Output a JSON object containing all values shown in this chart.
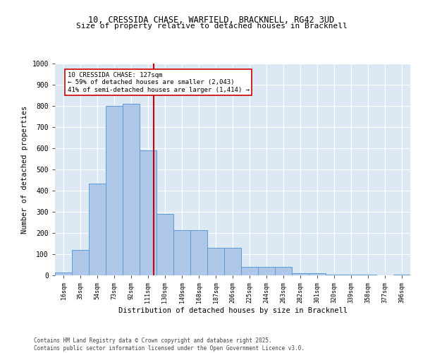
{
  "title_line1": "10, CRESSIDA CHASE, WARFIELD, BRACKNELL, RG42 3UD",
  "title_line2": "Size of property relative to detached houses in Bracknell",
  "xlabel": "Distribution of detached houses by size in Bracknell",
  "ylabel": "Number of detached properties",
  "annotation_line1": "10 CRESSIDA CHASE: 127sqm",
  "annotation_line2": "← 59% of detached houses are smaller (2,043)",
  "annotation_line3": "41% of semi-detached houses are larger (1,414) →",
  "property_size": 127,
  "bar_edges": [
    16,
    35,
    54,
    73,
    92,
    111,
    130,
    149,
    168,
    187,
    206,
    225,
    244,
    263,
    282,
    301,
    320,
    339,
    358,
    377,
    396
  ],
  "bar_heights": [
    15,
    120,
    435,
    800,
    810,
    590,
    290,
    215,
    215,
    130,
    130,
    40,
    40,
    40,
    10,
    10,
    5,
    5,
    2,
    0,
    2
  ],
  "bar_color": "#aec6e8",
  "bar_edge_color": "#5b9bd5",
  "vline_color": "#cc0000",
  "vline_x": 127,
  "annotation_box_color": "#cc0000",
  "background_color": "#dce9f5",
  "ylim": [
    0,
    1000
  ],
  "yticks": [
    0,
    100,
    200,
    300,
    400,
    500,
    600,
    700,
    800,
    900,
    1000
  ],
  "footer_line1": "Contains HM Land Registry data © Crown copyright and database right 2025.",
  "footer_line2": "Contains public sector information licensed under the Open Government Licence v3.0."
}
